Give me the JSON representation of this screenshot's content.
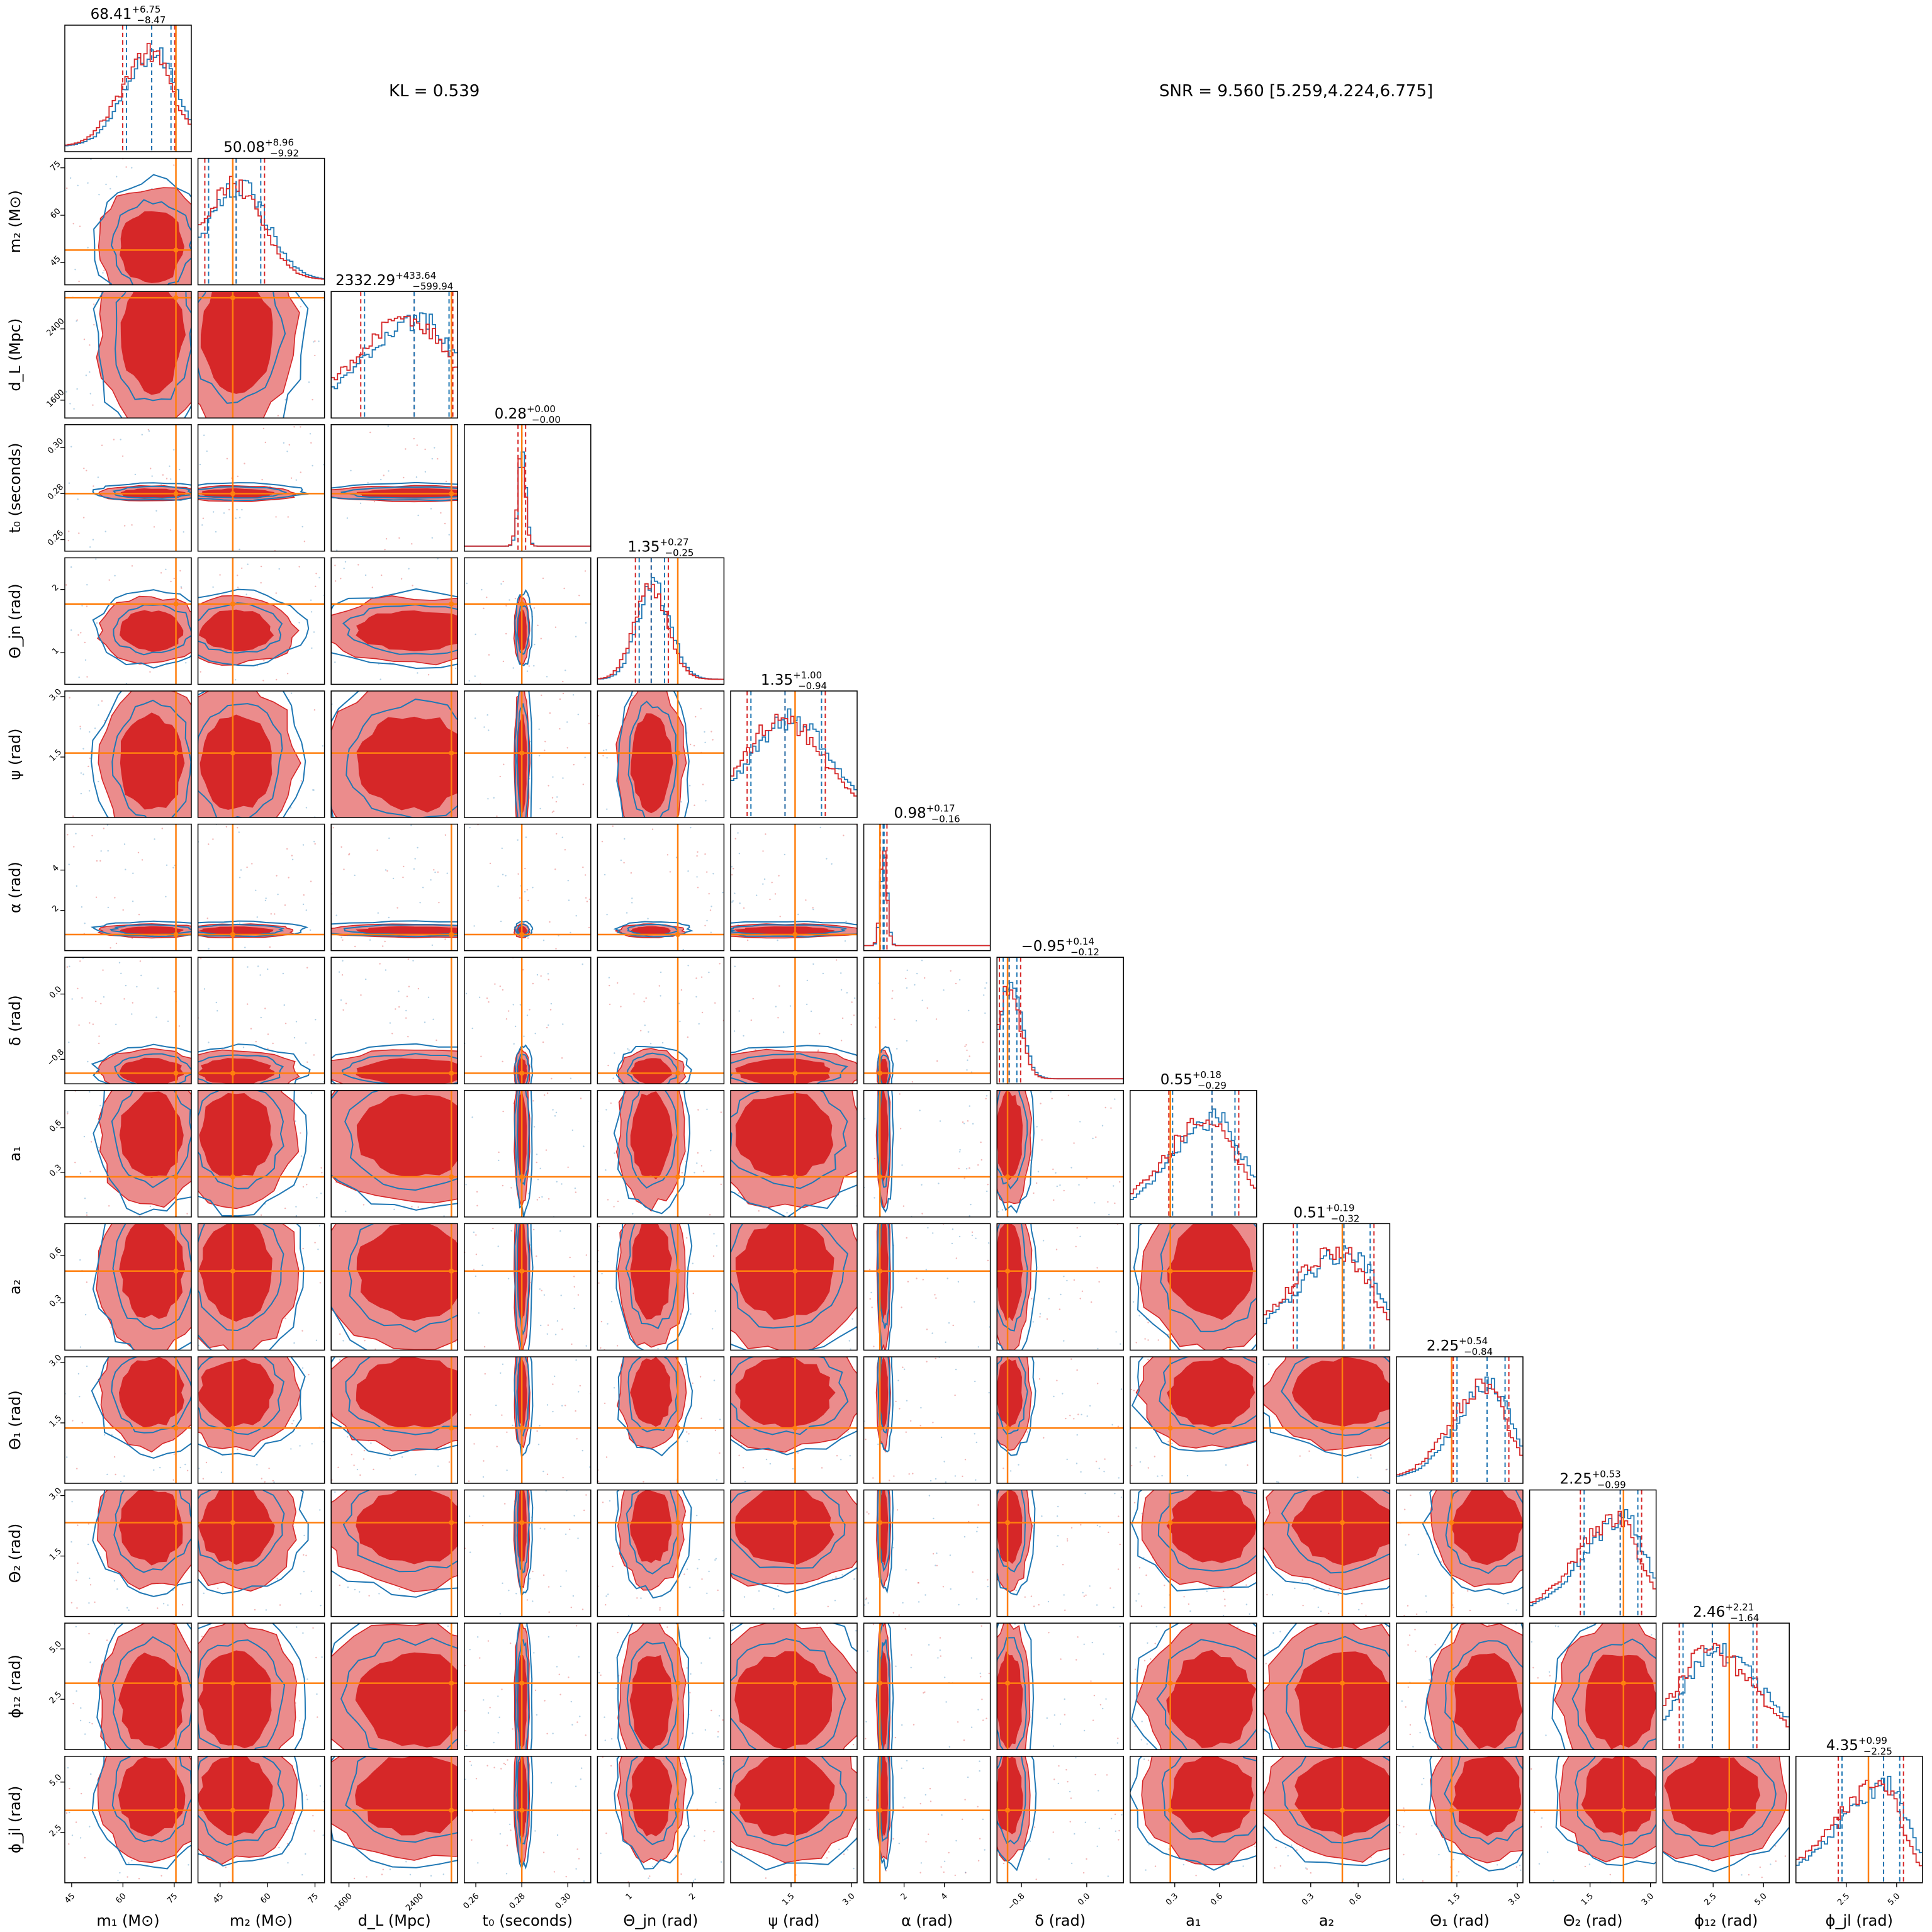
{
  "header": {
    "kl_text": "KL = 0.539",
    "snr_text": "SNR = 9.560 [5.259,4.224,6.775]"
  },
  "colors": {
    "series_red": "#d62728",
    "series_red_light": "#eb8c8c",
    "series_blue": "#1f77b4",
    "truth": "#ff7f0e"
  },
  "chart_data": {
    "type": "corner",
    "title": "",
    "grid": false,
    "legend": "none",
    "series": [
      {
        "color": "#d62728"
      },
      {
        "color": "#1f77b4"
      }
    ],
    "parameters": [
      {
        "label": "m₁ (M⊙)",
        "median": 68.41,
        "plus": 6.75,
        "minus": 8.47,
        "truth": 75.5,
        "range": [
          43,
          80
        ],
        "ticks": [
          "45",
          "60",
          "75"
        ]
      },
      {
        "label": "m₂ (M⊙)",
        "median": 50.08,
        "plus": 8.96,
        "minus": 9.92,
        "truth": 49.0,
        "range": [
          38,
          78
        ],
        "ticks": [
          "45",
          "60",
          "75"
        ]
      },
      {
        "label": "d_L (Mpc)",
        "median": 2332.29,
        "plus": 433.64,
        "minus": 599.94,
        "truth": 2750,
        "range": [
          1400,
          2820
        ],
        "ticks": [
          "1600",
          "2400"
        ]
      },
      {
        "label": "t₀ (seconds)",
        "median": 0.28,
        "plus": 0.0,
        "minus": 0.0,
        "truth": 0.28,
        "range": [
          0.255,
          0.31
        ],
        "ticks": [
          "0.26",
          "0.28",
          "0.30"
        ]
      },
      {
        "label": "Θ_jn (rad)",
        "median": 1.35,
        "plus": 0.27,
        "minus": 0.25,
        "truth": 1.77,
        "range": [
          0.5,
          2.5
        ],
        "ticks": [
          "1",
          "2"
        ]
      },
      {
        "label": "ψ (rad)",
        "median": 1.35,
        "plus": 1.0,
        "minus": 0.94,
        "truth": 1.6,
        "range": [
          0,
          3.14
        ],
        "ticks": [
          "1.5",
          "3.0"
        ]
      },
      {
        "label": "α (rad)",
        "median": 0.98,
        "plus": 0.17,
        "minus": 0.16,
        "truth": 0.8,
        "range": [
          0,
          6.28
        ],
        "ticks": [
          "2",
          "4"
        ]
      },
      {
        "label": "δ (rad)",
        "median": -0.95,
        "plus": 0.14,
        "minus": 0.12,
        "truth": -0.97,
        "range": [
          -1.1,
          0.45
        ],
        "ticks": [
          "−0.8",
          "0.0"
        ]
      },
      {
        "label": "a₁",
        "median": 0.55,
        "plus": 0.18,
        "minus": 0.29,
        "truth": 0.27,
        "range": [
          0,
          0.85
        ],
        "ticks": [
          "0.3",
          "0.6"
        ]
      },
      {
        "label": "a₂",
        "median": 0.51,
        "plus": 0.19,
        "minus": 0.32,
        "truth": 0.5,
        "range": [
          0,
          0.8
        ],
        "ticks": [
          "0.3",
          "0.6"
        ]
      },
      {
        "label": "Θ₁ (rad)",
        "median": 2.25,
        "plus": 0.54,
        "minus": 0.84,
        "truth": 1.37,
        "range": [
          0,
          3.14
        ],
        "ticks": [
          "1.5",
          "3.0"
        ]
      },
      {
        "label": "Θ₂ (rad)",
        "median": 2.25,
        "plus": 0.53,
        "minus": 0.99,
        "truth": 2.33,
        "range": [
          0,
          3.14
        ],
        "ticks": [
          "1.5",
          "3.0"
        ]
      },
      {
        "label": "ϕ₁₂ (rad)",
        "median": 2.46,
        "plus": 2.21,
        "minus": 1.64,
        "truth": 3.3,
        "range": [
          0,
          6.28
        ],
        "ticks": [
          "2.5",
          "5.0"
        ]
      },
      {
        "label": "ϕ_jl (rad)",
        "median": 4.35,
        "plus": 0.99,
        "minus": 2.25,
        "truth": 3.6,
        "range": [
          0,
          6.28
        ],
        "ticks": [
          "2.5",
          "5.0"
        ]
      }
    ]
  }
}
